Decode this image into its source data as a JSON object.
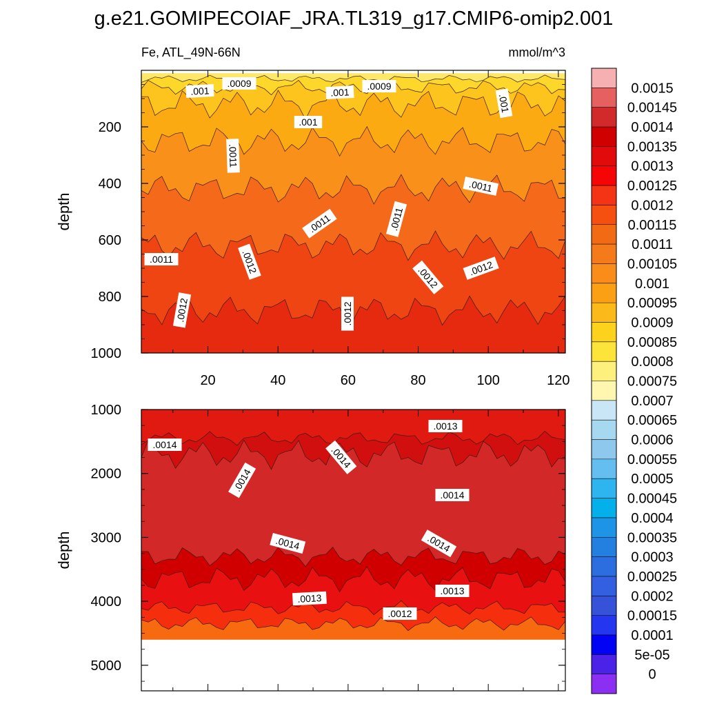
{
  "title": "g.e21.GOMIPECOIAF_JRA.TL319_g17.CMIP6-omip2.001",
  "chart_data": {
    "type": "heatmap",
    "variable": "Fe, ATL_49N-66N",
    "units": "mmol/m^3",
    "ylabel": "depth",
    "x_ticks": [
      "20",
      "40",
      "60",
      "80",
      "100",
      "120"
    ],
    "xlim": [
      1,
      122
    ],
    "missing_below_depth": 4600,
    "panels": [
      {
        "name": "upper",
        "ylim": [
          0,
          1000
        ],
        "y_ticks": [
          "200",
          "400",
          "600",
          "800",
          "1000"
        ],
        "y_tick_values": [
          200,
          400,
          600,
          800,
          1000
        ],
        "depth_breaks": [
          10,
          30,
          60,
          120,
          250,
          420,
          620,
          850,
          1000
        ],
        "band_colors": [
          "#fde86a",
          "#fdd82a",
          "#fcc41d",
          "#fbaa12",
          "#f8901a",
          "#f46a1a",
          "#ee4512",
          "#e52a10",
          "#e41c10"
        ],
        "contour_labels": [
          ".001",
          ".0009",
          ".001",
          ".0009",
          ".001",
          ".001",
          ".0011",
          ".0011",
          ".0011",
          ".0011",
          ".0011",
          ".0012",
          ".0012",
          ".0012",
          ".0012",
          ".0012"
        ]
      },
      {
        "name": "lower",
        "ylim": [
          1000,
          5400
        ],
        "y_ticks": [
          "1000",
          "2000",
          "3000",
          "4000",
          "5000"
        ],
        "y_tick_values": [
          1000,
          2000,
          3000,
          4000,
          5000
        ],
        "depth_breaks": [
          1000,
          1450,
          1700,
          3300,
          3650,
          4100,
          4350,
          4600
        ],
        "band_colors": [
          "#e01a10",
          "#d20f0f",
          "#d32828",
          "#d00000",
          "#e81010",
          "#f52f0d",
          "#f86a10"
        ],
        "contour_labels": [
          ".0013",
          ".0014",
          ".0014",
          ".0014",
          ".0014",
          ".0014",
          ".0014",
          ".0013",
          ".0013",
          ".0012"
        ]
      }
    ],
    "colorbar": {
      "labels": [
        "0.0015",
        "0.00145",
        "0.0014",
        "0.00135",
        "0.0013",
        "0.00125",
        "0.0012",
        "0.00115",
        "0.0011",
        "0.00105",
        "0.001",
        "0.00095",
        "0.0009",
        "0.00085",
        "0.0008",
        "0.00075",
        "0.0007",
        "0.00065",
        "0.0006",
        "0.00055",
        "0.0005",
        "0.00045",
        "0.0004",
        "0.00035",
        "0.0003",
        "0.00025",
        "0.0002",
        "0.00015",
        "0.0001",
        "5e-05",
        "0"
      ],
      "colors": [
        "#f7b0b2",
        "#e66060",
        "#d22a2a",
        "#d00000",
        "#e20a0a",
        "#f50505",
        "#f53315",
        "#f65010",
        "#f26a14",
        "#f47a1a",
        "#fa8c1a",
        "#fba014",
        "#fcba1a",
        "#fcd21c",
        "#fde43a",
        "#fdf07c",
        "#fff6b0",
        "#c8e6f5",
        "#a6d8f0",
        "#8ec8ec",
        "#64bff0",
        "#2eb4ee",
        "#04b0ea",
        "#1d94e6",
        "#2380e0",
        "#2c6ee0",
        "#3260e0",
        "#3552d8",
        "#2436f0",
        "#0202f5",
        "#4a22e8",
        "#8b2ff2"
      ]
    }
  }
}
